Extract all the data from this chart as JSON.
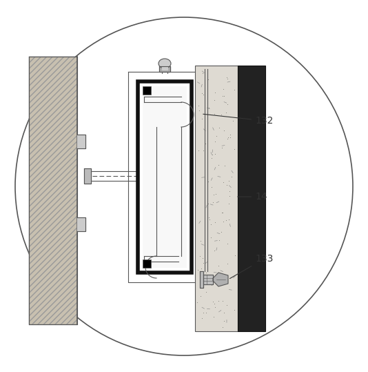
{
  "bg_color": "#ffffff",
  "circle_color": "#555555",
  "circle_lw": 1.2,
  "label_132": "132",
  "label_14": "14",
  "label_133": "133",
  "label_color": "#333333",
  "label_fontsize": 10,
  "line_color": "#555555",
  "thick_line_color": "#111111",
  "thick_lw": 4.0,
  "thin_lw": 0.8,
  "medium_lw": 1.2,
  "concrete_color": "#dedad2",
  "marble_color": "#222222",
  "wall_face_color": "#c8c0b0",
  "wall_hatch_color": "#999999"
}
